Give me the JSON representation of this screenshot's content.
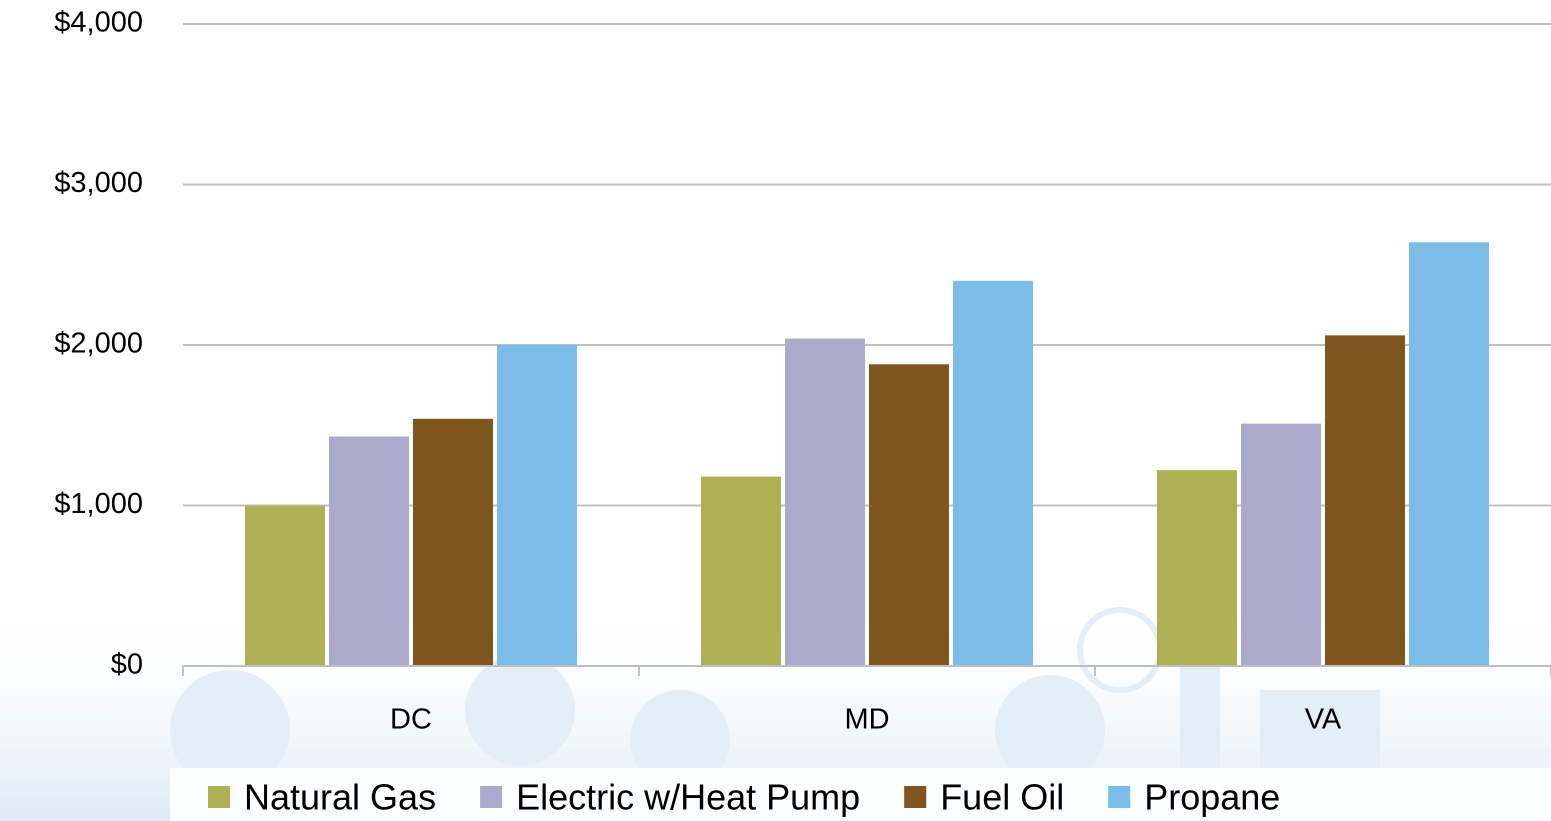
{
  "chart_data": {
    "type": "bar",
    "categories": [
      "DC",
      "MD",
      "VA"
    ],
    "series": [
      {
        "name": "Natural Gas",
        "color": "#adb053",
        "values": [
          1000,
          1180,
          1220
        ]
      },
      {
        "name": "Electric w/Heat Pump",
        "color": "#abaacb",
        "values": [
          1430,
          2040,
          1510
        ]
      },
      {
        "name": "Fuel Oil",
        "color": "#7f561e",
        "values": [
          1540,
          1880,
          2060
        ]
      },
      {
        "name": "Propane",
        "color": "#7bbde6",
        "values": [
          2000,
          2400,
          2640
        ]
      }
    ],
    "ylim": [
      0,
      4000
    ],
    "yticks": [
      {
        "value": 0,
        "label": "$0"
      },
      {
        "value": 1000,
        "label": "$1,000"
      },
      {
        "value": 2000,
        "label": "$2,000"
      },
      {
        "value": 3000,
        "label": "$3,000"
      },
      {
        "value": 4000,
        "label": "$4,000"
      }
    ],
    "grid": true,
    "legend": "bottom"
  }
}
